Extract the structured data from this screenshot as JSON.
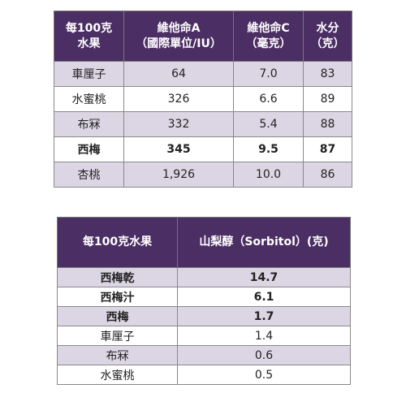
{
  "table1": {
    "headers": [
      {
        "line1": "每100克",
        "line2": "水果"
      },
      {
        "line1": "維他命A",
        "line2": "（國際單位/IU）"
      },
      {
        "line1": "維他命C",
        "line2": "（毫克）"
      },
      {
        "line1": "水分",
        "line2": "（克）"
      }
    ],
    "rows": [
      {
        "cells": [
          "車厘子",
          "64",
          "7.0",
          "83"
        ],
        "bold": false
      },
      {
        "cells": [
          "水蜜桃",
          "326",
          "6.6",
          "89"
        ],
        "bold": false
      },
      {
        "cells": [
          "布冧",
          "332",
          "5.4",
          "88"
        ],
        "bold": false
      },
      {
        "cells": [
          "西梅",
          "345",
          "9.5",
          "87"
        ],
        "bold": true
      },
      {
        "cells": [
          "杏桃",
          "1,926",
          "10.0",
          "86"
        ],
        "bold": false
      }
    ]
  },
  "table2": {
    "headers": [
      "每100克水果",
      "山梨醇（Sorbitol）(克)"
    ],
    "rows": [
      {
        "cells": [
          "西梅乾",
          "14.7"
        ],
        "bold": true
      },
      {
        "cells": [
          "西梅汁",
          "6.1"
        ],
        "bold": true
      },
      {
        "cells": [
          "西梅",
          "1.7"
        ],
        "bold": true
      },
      {
        "cells": [
          "車厘子",
          "1.4"
        ],
        "bold": false
      },
      {
        "cells": [
          "布冧",
          "0.6"
        ],
        "bold": false
      },
      {
        "cells": [
          "水蜜桃",
          "0.5"
        ],
        "bold": false
      }
    ]
  },
  "colors": {
    "header_bg": "#4b2e63",
    "shade_row": "#dcd6e4"
  }
}
